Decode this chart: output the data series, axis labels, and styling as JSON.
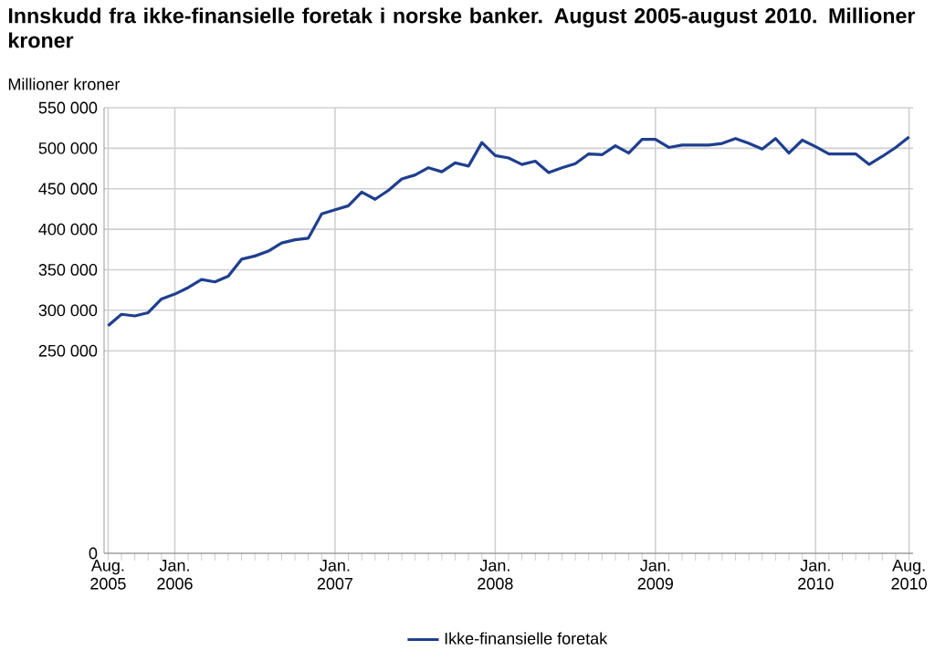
{
  "chart_data": {
    "type": "line",
    "title": "Innskudd fra ikke-finansielle foretak i norske banker. August 2005-august 2010. Millioner kroner",
    "ylabel": "Millioner kroner",
    "categories": [
      "Aug. 2005",
      null,
      null,
      null,
      null,
      "Jan. 2006",
      null,
      null,
      null,
      null,
      null,
      null,
      null,
      null,
      null,
      null,
      null,
      "Jan. 2007",
      null,
      null,
      null,
      null,
      null,
      null,
      null,
      null,
      null,
      null,
      null,
      "Jan. 2008",
      null,
      null,
      null,
      null,
      null,
      null,
      null,
      null,
      null,
      null,
      null,
      "Jan. 2009",
      null,
      null,
      null,
      null,
      null,
      null,
      null,
      null,
      null,
      null,
      null,
      "Jan. 2010",
      null,
      null,
      null,
      null,
      null,
      null,
      "Aug. 2010"
    ],
    "series": [
      {
        "name": "Ikke-finansielle foretak",
        "color": "#1f3f8f",
        "values": [
          281000,
          295000,
          293000,
          297000,
          314000,
          320000,
          328000,
          338000,
          335000,
          342000,
          363000,
          367000,
          373000,
          383000,
          387000,
          389000,
          419000,
          424000,
          429000,
          446000,
          437000,
          448000,
          462000,
          467000,
          476000,
          471000,
          482000,
          478000,
          507000,
          491000,
          488000,
          480000,
          484000,
          470000,
          476000,
          481000,
          493000,
          492000,
          503000,
          494000,
          511000,
          511000,
          501000,
          504000,
          504000,
          504000,
          506000,
          512000,
          506000,
          499000,
          512000,
          494000,
          510000,
          502000,
          493000,
          493000,
          493000,
          480000,
          490000,
          501000,
          514000
        ]
      }
    ],
    "ylim": [
      0,
      550000
    ],
    "yticks": [
      0,
      {
        "value": 250000,
        "label": "250 000"
      },
      {
        "value": 300000,
        "label": "300 000"
      },
      {
        "value": 350000,
        "label": "350 000"
      },
      {
        "value": 400000,
        "label": "400 000"
      },
      {
        "value": 450000,
        "label": "450 000"
      },
      {
        "value": 500000,
        "label": "500 000"
      },
      {
        "value": 550000,
        "label": "550 000"
      }
    ],
    "grid": true,
    "legend": "bottom",
    "marker": "none",
    "line_style": "solid"
  }
}
